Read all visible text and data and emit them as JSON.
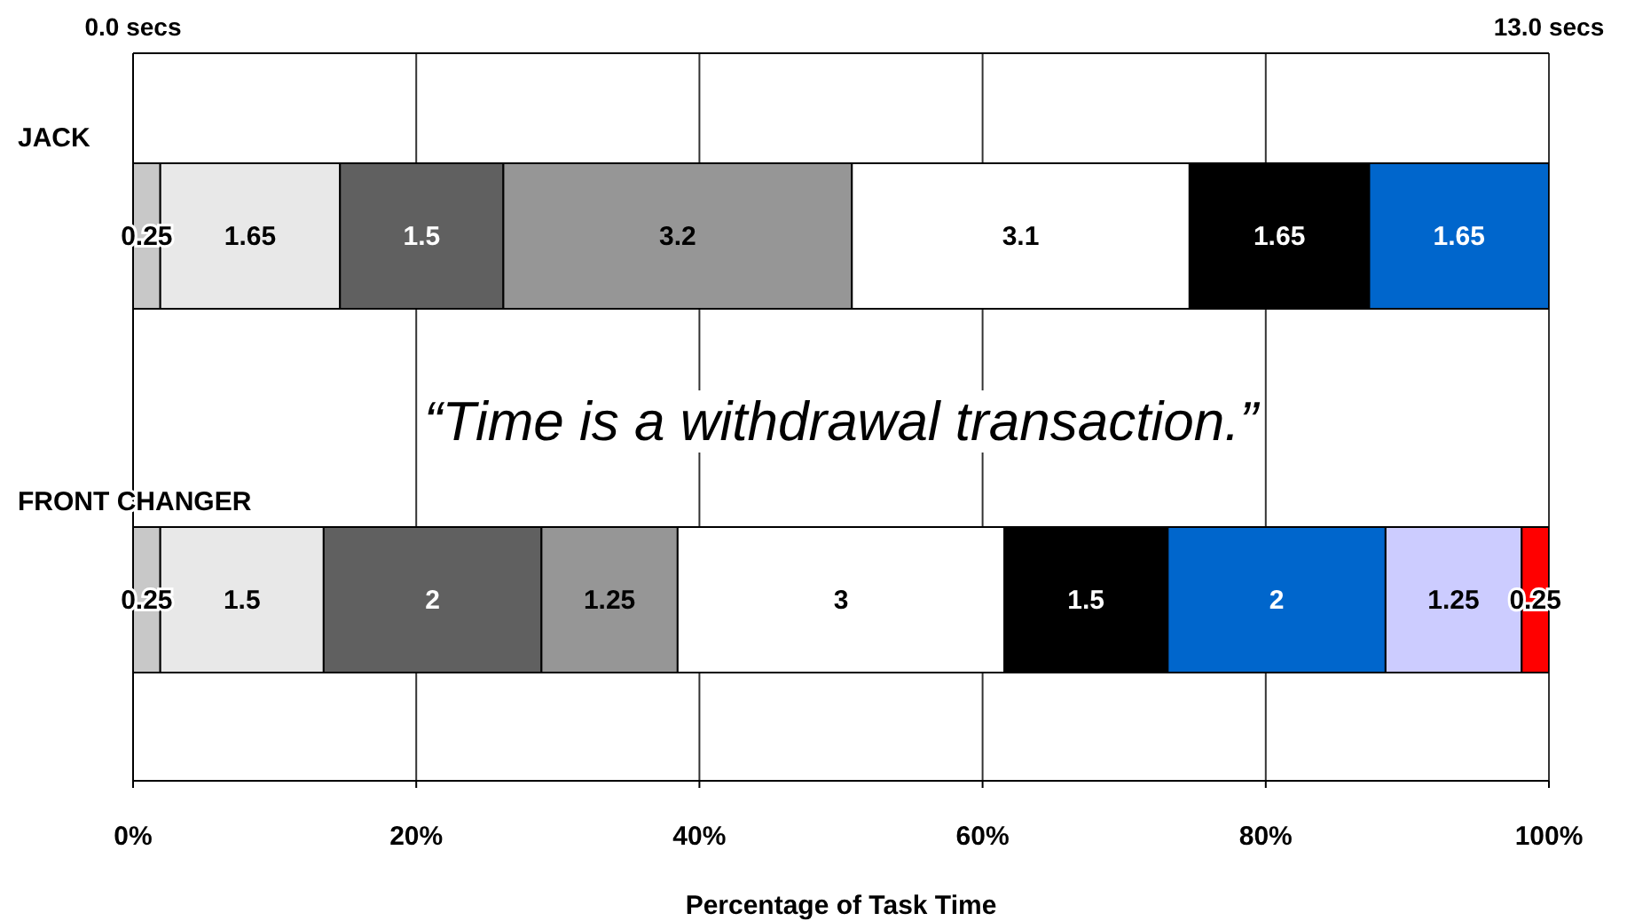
{
  "chart_data": {
    "type": "bar",
    "orientation": "horizontal",
    "stacked": true,
    "grid": "x",
    "data_labels": true,
    "categories": [
      "JACK",
      "FRONT CHANGER"
    ],
    "series": [
      {
        "color": "#c8c8c8",
        "axis": "x2",
        "values": [
          0.25,
          0.25
        ]
      },
      {
        "color": "#e8e8e8",
        "axis": "x2",
        "values": [
          1.65,
          1.5
        ]
      },
      {
        "color": "#606060",
        "axis": "x2",
        "values": [
          1.5,
          2
        ]
      },
      {
        "color": "#969696",
        "axis": "x2",
        "values": [
          3.2,
          1.25
        ]
      },
      {
        "color": "#ffffff",
        "axis": "x2",
        "values": [
          3.1,
          3
        ]
      },
      {
        "color": "#000000",
        "axis": "x2",
        "values": [
          1.65,
          1.5
        ]
      },
      {
        "color": "#0066cc",
        "axis": "x2",
        "values": [
          1.65,
          2
        ]
      },
      {
        "color": "#ccccff",
        "axis": "x2",
        "values": [
          null,
          1.25
        ]
      },
      {
        "color": "#ff0000",
        "axis": "x2",
        "values": [
          null,
          0.25
        ]
      }
    ],
    "xlim": [
      0,
      100
    ],
    "xticks": [
      {
        "value": 0,
        "label": "0%"
      },
      {
        "value": 20,
        "label": "20%"
      },
      {
        "value": 40,
        "label": "40%"
      },
      {
        "value": 60,
        "label": "60%"
      },
      {
        "value": 80,
        "label": "80%"
      },
      {
        "value": 100,
        "label": "100%"
      }
    ],
    "x2lim": [
      0,
      13
    ],
    "x2ticks": [
      {
        "value": 0,
        "label": "0.0 secs"
      },
      {
        "value": 13,
        "label": "13.0 secs"
      }
    ],
    "xlabel": "Percentage of Task Time",
    "annotations": [
      "“Time is a withdrawal transaction.”"
    ]
  }
}
